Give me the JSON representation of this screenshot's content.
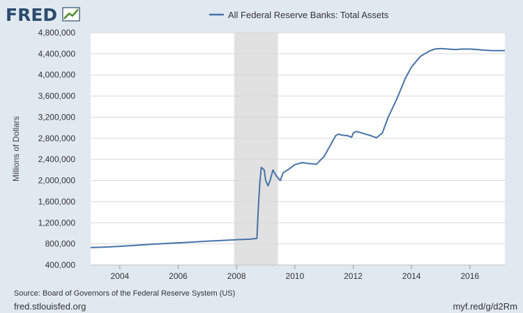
{
  "branding": {
    "logo_text": "FRED"
  },
  "footer": {
    "source": "Source: Board of Governors of the Federal Reserve System (US)",
    "site": "fred.stlouisfed.org",
    "short_url": "myf.red/g/d2Rm"
  },
  "colors": {
    "background": "#e1e9f0",
    "plot_background": "#ffffff",
    "series_line": "#4572a7",
    "recession_band": "#e1e1e1",
    "gridline": "#d8d8d8"
  },
  "chart_data": {
    "type": "line",
    "title": "",
    "xlabel": "",
    "ylabel": "Millions of Dollars",
    "legend": {
      "entries": [
        "All Federal Reserve Banks: Total Assets"
      ],
      "placement": "top-center"
    },
    "grid": true,
    "xlim": [
      2003.0,
      2017.2
    ],
    "ylim": [
      400000,
      4800000
    ],
    "x_ticks": [
      2004,
      2006,
      2008,
      2010,
      2012,
      2014,
      2016
    ],
    "x_tick_labels": [
      "2004",
      "2006",
      "2008",
      "2010",
      "2012",
      "2014",
      "2016"
    ],
    "y_ticks": [
      400000,
      800000,
      1200000,
      1600000,
      2000000,
      2400000,
      2800000,
      3200000,
      3600000,
      4000000,
      4400000,
      4800000
    ],
    "y_tick_labels": [
      "400,000",
      "800,000",
      "1,200,000",
      "1,600,000",
      "2,000,000",
      "2,400,000",
      "2,800,000",
      "3,200,000",
      "3,600,000",
      "4,000,000",
      "4,400,000",
      "4,800,000"
    ],
    "recessions": [
      {
        "start": 2007.92,
        "end": 2009.42
      }
    ],
    "series": [
      {
        "name": "All Federal Reserve Banks: Total Assets",
        "x": [
          2003.0,
          2003.5,
          2004.0,
          2004.5,
          2005.0,
          2005.5,
          2006.0,
          2006.5,
          2007.0,
          2007.5,
          2008.0,
          2008.5,
          2008.7,
          2008.75,
          2008.8,
          2008.85,
          2008.95,
          2009.0,
          2009.08,
          2009.15,
          2009.25,
          2009.35,
          2009.42,
          2009.5,
          2009.6,
          2009.75,
          2010.0,
          2010.25,
          2010.5,
          2010.75,
          2010.9,
          2011.0,
          2011.2,
          2011.4,
          2011.5,
          2011.6,
          2011.8,
          2011.95,
          2012.0,
          2012.1,
          2012.3,
          2012.6,
          2012.8,
          2013.0,
          2013.2,
          2013.5,
          2013.8,
          2014.0,
          2014.3,
          2014.6,
          2014.8,
          2015.0,
          2015.25,
          2015.5,
          2015.75,
          2016.0,
          2016.25,
          2016.5,
          2016.75,
          2017.0,
          2017.2
        ],
        "values": [
          730000,
          740000,
          755000,
          770000,
          790000,
          805000,
          820000,
          835000,
          850000,
          865000,
          880000,
          890000,
          905000,
          1500000,
          1950000,
          2250000,
          2200000,
          2000000,
          1900000,
          2000000,
          2200000,
          2100000,
          2050000,
          2000000,
          2150000,
          2200000,
          2300000,
          2340000,
          2320000,
          2310000,
          2400000,
          2450000,
          2650000,
          2850000,
          2880000,
          2860000,
          2850000,
          2820000,
          2900000,
          2930000,
          2900000,
          2850000,
          2810000,
          2900000,
          3200000,
          3550000,
          3950000,
          4150000,
          4350000,
          4450000,
          4490000,
          4500000,
          4490000,
          4480000,
          4490000,
          4490000,
          4480000,
          4470000,
          4460000,
          4460000,
          4460000
        ]
      }
    ]
  }
}
